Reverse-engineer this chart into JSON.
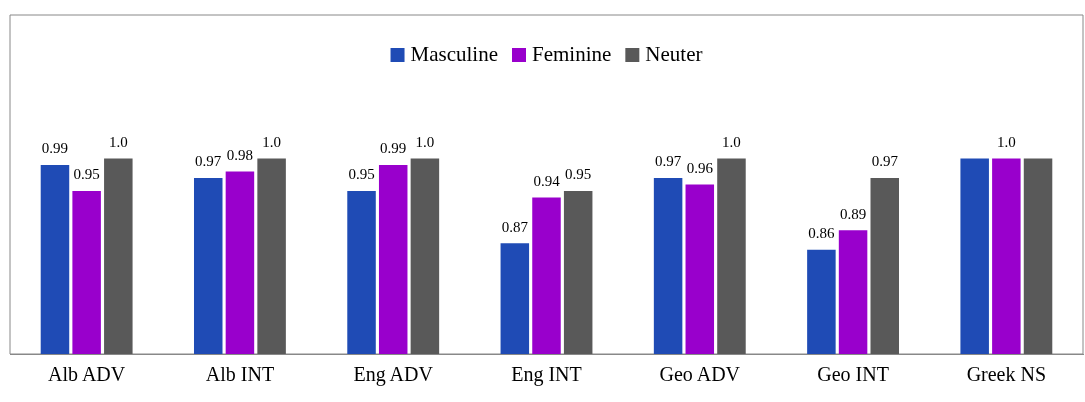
{
  "chart_data": {
    "type": "bar",
    "categories": [
      "Alb ADV",
      "Alb INT",
      "Eng ADV",
      "Eng INT",
      "Geo ADV",
      "Geo INT",
      "Greek NS"
    ],
    "ylim": [
      0.7,
      1.22
    ],
    "legend": "top",
    "series": [
      {
        "name": "Masculine",
        "color": "#1f4bb5",
        "values": [
          0.99,
          0.97,
          0.95,
          0.87,
          0.97,
          0.86,
          1.0
        ],
        "value_labels": [
          "0.99",
          "0.97",
          "0.95",
          "0.87",
          "0.97",
          "0.86",
          null
        ]
      },
      {
        "name": "Feminine",
        "color": "#9900cc",
        "values": [
          0.95,
          0.98,
          0.99,
          0.94,
          0.96,
          0.89,
          1.0
        ],
        "value_labels": [
          "0.95",
          "0.98",
          "0.99",
          "0.94",
          "0.96",
          "0.89",
          "1.0"
        ]
      },
      {
        "name": "Neuter",
        "color": "#595959",
        "values": [
          1.0,
          1.0,
          1.0,
          0.95,
          1.0,
          0.97,
          1.0
        ],
        "value_labels": [
          "1.0",
          "1.0",
          "1.0",
          "0.95",
          "1.0",
          "0.97",
          null
        ]
      }
    ]
  }
}
